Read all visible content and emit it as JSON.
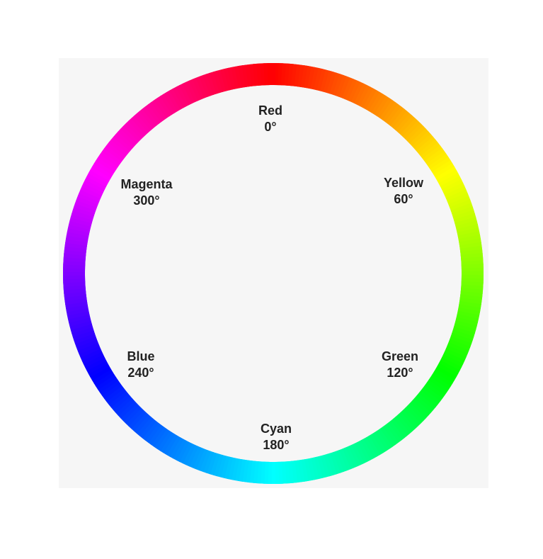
{
  "wheel": {
    "hues": [
      {
        "name": "Red",
        "angle_label": "0°",
        "hue_deg": 0,
        "color": "#ff0000"
      },
      {
        "name": "Yellow",
        "angle_label": "60°",
        "hue_deg": 60,
        "color": "#ffff00"
      },
      {
        "name": "Green",
        "angle_label": "120°",
        "hue_deg": 120,
        "color": "#00ff00"
      },
      {
        "name": "Cyan",
        "angle_label": "180°",
        "hue_deg": 180,
        "color": "#00ffff"
      },
      {
        "name": "Blue",
        "angle_label": "240°",
        "hue_deg": 240,
        "color": "#0000ff"
      },
      {
        "name": "Magenta",
        "angle_label": "300°",
        "hue_deg": 300,
        "color": "#ff00ff"
      }
    ],
    "background_color": "#f6f6f6",
    "text_color": "#222222"
  }
}
